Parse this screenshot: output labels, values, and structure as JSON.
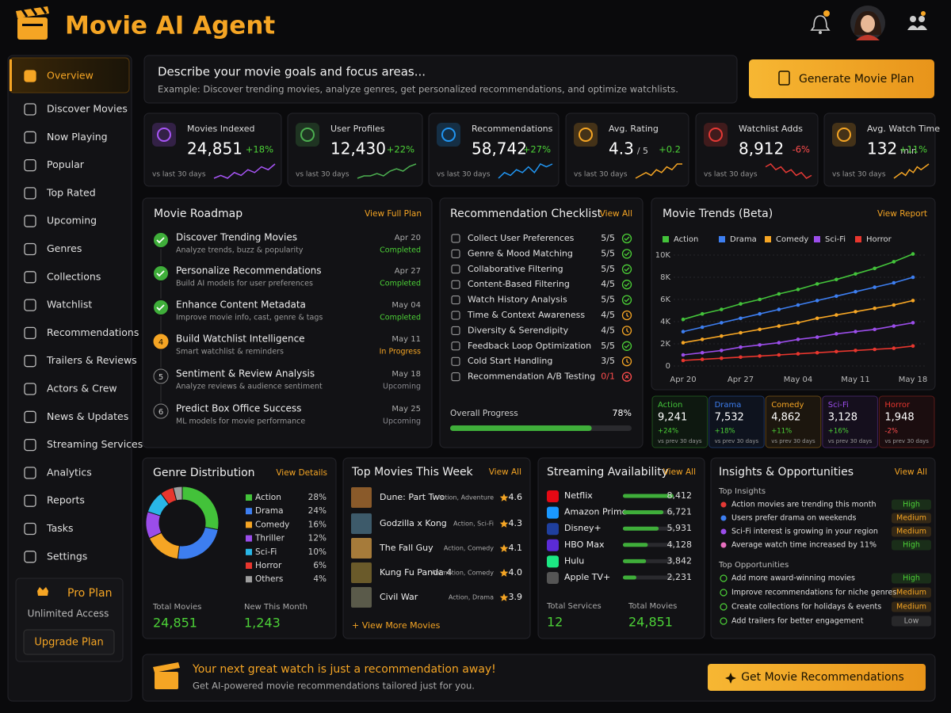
{
  "header": {
    "title": "Movie AI Agent"
  },
  "sidebar": {
    "items": [
      "Overview",
      "Discover Movies",
      "Now Playing",
      "Popular",
      "Top Rated",
      "Upcoming",
      "Genres",
      "Collections",
      "Watchlist",
      "Recommendations",
      "Trailers & Reviews",
      "Actors & Crew",
      "News & Updates",
      "Streaming Services",
      "Analytics",
      "Reports",
      "Tasks",
      "Settings"
    ],
    "active": 0,
    "plan": {
      "title": "Pro Plan",
      "subtitle": "Unlimited Access",
      "button": "Upgrade Plan"
    }
  },
  "prompt": {
    "title": "Describe your movie goals and focus areas...",
    "example": "Example: Discover trending movies, analyze genres, get personalized recommendations, and optimize watchlists.",
    "button": "Generate Movie Plan"
  },
  "stats": [
    {
      "label": "Movies Indexed",
      "value": "24,851",
      "delta": "+18%",
      "note": "vs last 30 days",
      "color": "#a855f7",
      "trend": [
        3,
        4,
        3,
        5,
        4,
        6,
        5,
        7,
        6,
        8
      ]
    },
    {
      "label": "User Profiles",
      "value": "12,430",
      "delta": "+22%",
      "note": "vs last 30 days",
      "color": "#4caf50",
      "trend": [
        2,
        3,
        3,
        4,
        3,
        5,
        6,
        5,
        7,
        8
      ]
    },
    {
      "label": "Recommendations",
      "value": "58,742",
      "delta": "+27%",
      "note": "vs last 30 days",
      "color": "#2196f3",
      "trend": [
        3,
        5,
        4,
        6,
        5,
        7,
        5,
        8,
        7,
        8
      ]
    },
    {
      "label": "Avg. Rating",
      "value": "4.3",
      "suffix": "/ 5",
      "delta": "+0.2",
      "note": "vs last 30 days",
      "color": "#f5a524",
      "trend": [
        2,
        3,
        4,
        3,
        5,
        4,
        6,
        5,
        7,
        7
      ]
    },
    {
      "label": "Watchlist Adds",
      "value": "8,912",
      "delta": "-6%",
      "note": "vs last 30 days",
      "color": "#e53935",
      "trend": [
        7,
        8,
        6,
        7,
        5,
        6,
        4,
        5,
        3,
        4
      ]
    },
    {
      "label": "Avg. Watch Time",
      "value": "132",
      "suffix": "min",
      "delta": "+11%",
      "note": "vs last 30 days",
      "color": "#f5a524",
      "trend": [
        3,
        4,
        5,
        4,
        6,
        5,
        7,
        6,
        7,
        8
      ]
    }
  ],
  "roadmap": {
    "title": "Movie Roadmap",
    "link": "View Full Plan",
    "items": [
      {
        "step": 1,
        "title": "Discover Trending Movies",
        "subtitle": "Analyze trends, buzz & popularity",
        "date": "Apr 20",
        "status": "Completed",
        "state": "done"
      },
      {
        "step": 2,
        "title": "Personalize Recommendations",
        "subtitle": "Build AI models for user preferences",
        "date": "Apr 27",
        "status": "Completed",
        "state": "done"
      },
      {
        "step": 3,
        "title": "Enhance Content Metadata",
        "subtitle": "Improve movie info, cast, genre & tags",
        "date": "May 04",
        "status": "Completed",
        "state": "done"
      },
      {
        "step": 4,
        "title": "Build Watchlist Intelligence",
        "subtitle": "Smart watchlist & reminders",
        "date": "May 11",
        "status": "In Progress",
        "state": "current"
      },
      {
        "step": 5,
        "title": "Sentiment & Review Analysis",
        "subtitle": "Analyze reviews & audience sentiment",
        "date": "May 18",
        "status": "Upcoming",
        "state": "upcoming"
      },
      {
        "step": 6,
        "title": "Predict Box Office Success",
        "subtitle": "ML models for movie performance",
        "date": "May 25",
        "status": "Upcoming",
        "state": "upcoming"
      }
    ]
  },
  "checklist": {
    "title": "Recommendation Checklist",
    "link": "View All",
    "items": [
      {
        "label": "Collect User Preferences",
        "score": "5/5",
        "state": "ok"
      },
      {
        "label": "Genre & Mood Matching",
        "score": "5/5",
        "state": "ok"
      },
      {
        "label": "Collaborative Filtering",
        "score": "5/5",
        "state": "ok"
      },
      {
        "label": "Content-Based Filtering",
        "score": "4/5",
        "state": "ok"
      },
      {
        "label": "Watch History Analysis",
        "score": "5/5",
        "state": "ok"
      },
      {
        "label": "Time & Context Awareness",
        "score": "4/5",
        "state": "warn"
      },
      {
        "label": "Diversity & Serendipity",
        "score": "4/5",
        "state": "warn"
      },
      {
        "label": "Feedback Loop Optimization",
        "score": "5/5",
        "state": "ok"
      },
      {
        "label": "Cold Start Handling",
        "score": "3/5",
        "state": "warn"
      },
      {
        "label": "Recommendation A/B Testing",
        "score": "0/1",
        "state": "fail"
      }
    ],
    "progress": {
      "label": "Overall Progress",
      "value": 78,
      "value_label": "78%"
    }
  },
  "trends": {
    "type": "line",
    "title": "Movie Trends (Beta)",
    "link": "View Report",
    "x": [
      "Apr 20",
      null,
      null,
      "Apr 27",
      null,
      null,
      "May 04",
      null,
      null,
      "May 11",
      null,
      null,
      "May 18"
    ],
    "ylim": [
      0,
      10500
    ],
    "yticks": [
      0,
      {
        "value": 2000,
        "label": "2K"
      },
      {
        "value": 4000,
        "label": "4K"
      },
      {
        "value": 6000,
        "label": "6K"
      },
      {
        "value": 8000,
        "label": "8K"
      },
      {
        "value": 10000,
        "label": "10K"
      }
    ],
    "series": [
      {
        "name": "Action",
        "color": "#43c23a",
        "values": [
          4200,
          4700,
          5100,
          5600,
          6000,
          6500,
          6900,
          7400,
          7800,
          8300,
          8800,
          9400,
          10100
        ],
        "total": "9,241",
        "delta": "+24%",
        "note": "vs prev 30 days"
      },
      {
        "name": "Drama",
        "color": "#3d7ef0",
        "values": [
          3100,
          3500,
          3900,
          4300,
          4700,
          5100,
          5500,
          5900,
          6300,
          6700,
          7100,
          7500,
          8000
        ],
        "total": "7,532",
        "delta": "+18%",
        "note": "vs prev 30 days"
      },
      {
        "name": "Comedy",
        "color": "#f5a524",
        "values": [
          2100,
          2400,
          2700,
          3000,
          3300,
          3600,
          3900,
          4300,
          4600,
          4900,
          5200,
          5500,
          5900
        ],
        "total": "4,862",
        "delta": "+11%",
        "note": "vs prev 30 days"
      },
      {
        "name": "Sci-Fi",
        "color": "#9b4dea",
        "values": [
          1000,
          1200,
          1400,
          1700,
          1900,
          2100,
          2400,
          2600,
          2900,
          3100,
          3300,
          3600,
          3900
        ],
        "total": "3,128",
        "delta": "+16%",
        "note": "vs prev 30 days"
      },
      {
        "name": "Horror",
        "color": "#e8362e",
        "values": [
          500,
          600,
          700,
          800,
          900,
          1000,
          1100,
          1200,
          1300,
          1400,
          1500,
          1600,
          1800
        ],
        "total": "1,948",
        "delta": "-2%",
        "note": "vs prev 30 days"
      }
    ]
  },
  "genres": {
    "type": "pie",
    "title": "Genre Distribution",
    "link": "View Details",
    "slices": [
      {
        "name": "Action",
        "value": 28,
        "value_label": "28%",
        "color": "#43c23a"
      },
      {
        "name": "Drama",
        "value": 24,
        "value_label": "24%",
        "color": "#3d7ef0"
      },
      {
        "name": "Comedy",
        "value": 16,
        "value_label": "16%",
        "color": "#f5a524"
      },
      {
        "name": "Thriller",
        "value": 12,
        "value_label": "12%",
        "color": "#9b4dea"
      },
      {
        "name": "Sci-Fi",
        "value": 10,
        "value_label": "10%",
        "color": "#29b6e6"
      },
      {
        "name": "Horror",
        "value": 6,
        "value_label": "6%",
        "color": "#e8362e"
      },
      {
        "name": "Others",
        "value": 4,
        "value_label": "4%",
        "color": "#9e9e9e"
      }
    ],
    "totals": [
      {
        "label": "Total Movies",
        "value": "24,851"
      },
      {
        "label": "New This Month",
        "value": "1,243"
      }
    ]
  },
  "top_movies": {
    "title": "Top Movies This Week",
    "link": "View All",
    "items": [
      {
        "title": "Dune: Part Two",
        "genres": "Action, Adventure",
        "rating": "4.6"
      },
      {
        "title": "Godzilla x Kong",
        "genres": "Action, Sci-Fi",
        "rating": "4.3"
      },
      {
        "title": "The Fall Guy",
        "genres": "Action, Comedy",
        "rating": "4.1"
      },
      {
        "title": "Kung Fu Panda 4",
        "genres": "Animation, Comedy",
        "rating": "4.0"
      },
      {
        "title": "Civil War",
        "genres": "Action, Drama",
        "rating": "3.9"
      }
    ],
    "more": "+ View More Movies"
  },
  "streaming": {
    "title": "Streaming Availability",
    "link": "View All",
    "items": [
      {
        "name": "Netflix",
        "value": 8412,
        "value_label": "8,412",
        "color": "#e50914"
      },
      {
        "name": "Amazon Prime",
        "value": 6721,
        "value_label": "6,721",
        "color": "#1a98ff"
      },
      {
        "name": "Disney+",
        "value": 5931,
        "value_label": "5,931",
        "color": "#1f3f9e"
      },
      {
        "name": "HBO Max",
        "value": 4128,
        "value_label": "4,128",
        "color": "#5b2bd6"
      },
      {
        "name": "Hulu",
        "value": 3842,
        "value_label": "3,842",
        "color": "#1ce783"
      },
      {
        "name": "Apple TV+",
        "value": 2231,
        "value_label": "2,231",
        "color": "#555555"
      }
    ],
    "totals": [
      {
        "label": "Total Services",
        "value": "12"
      },
      {
        "label": "Total Movies",
        "value": "24,851"
      }
    ]
  },
  "insights": {
    "title": "Insights & Opportunities",
    "link": "View All",
    "sections": [
      {
        "heading": "Top Insights",
        "items": [
          {
            "text": "Action movies are trending this month",
            "level": "High"
          },
          {
            "text": "Users prefer drama on weekends",
            "level": "Medium"
          },
          {
            "text": "Sci-Fi interest is growing in your region",
            "level": "Medium"
          },
          {
            "text": "Average watch time increased by 11%",
            "level": "High"
          }
        ]
      },
      {
        "heading": "Top Opportunities",
        "items": [
          {
            "text": "Add more award-winning movies",
            "level": "High"
          },
          {
            "text": "Improve recommendations for niche genres",
            "level": "Medium"
          },
          {
            "text": "Create collections for holidays & events",
            "level": "Medium"
          },
          {
            "text": "Add trailers for better engagement",
            "level": "Low"
          }
        ]
      }
    ]
  },
  "footer": {
    "title": "Your next great watch is just a recommendation away!",
    "subtitle": "Get AI-powered movie recommendations tailored just for you.",
    "button": "Get Movie Recommendations"
  }
}
